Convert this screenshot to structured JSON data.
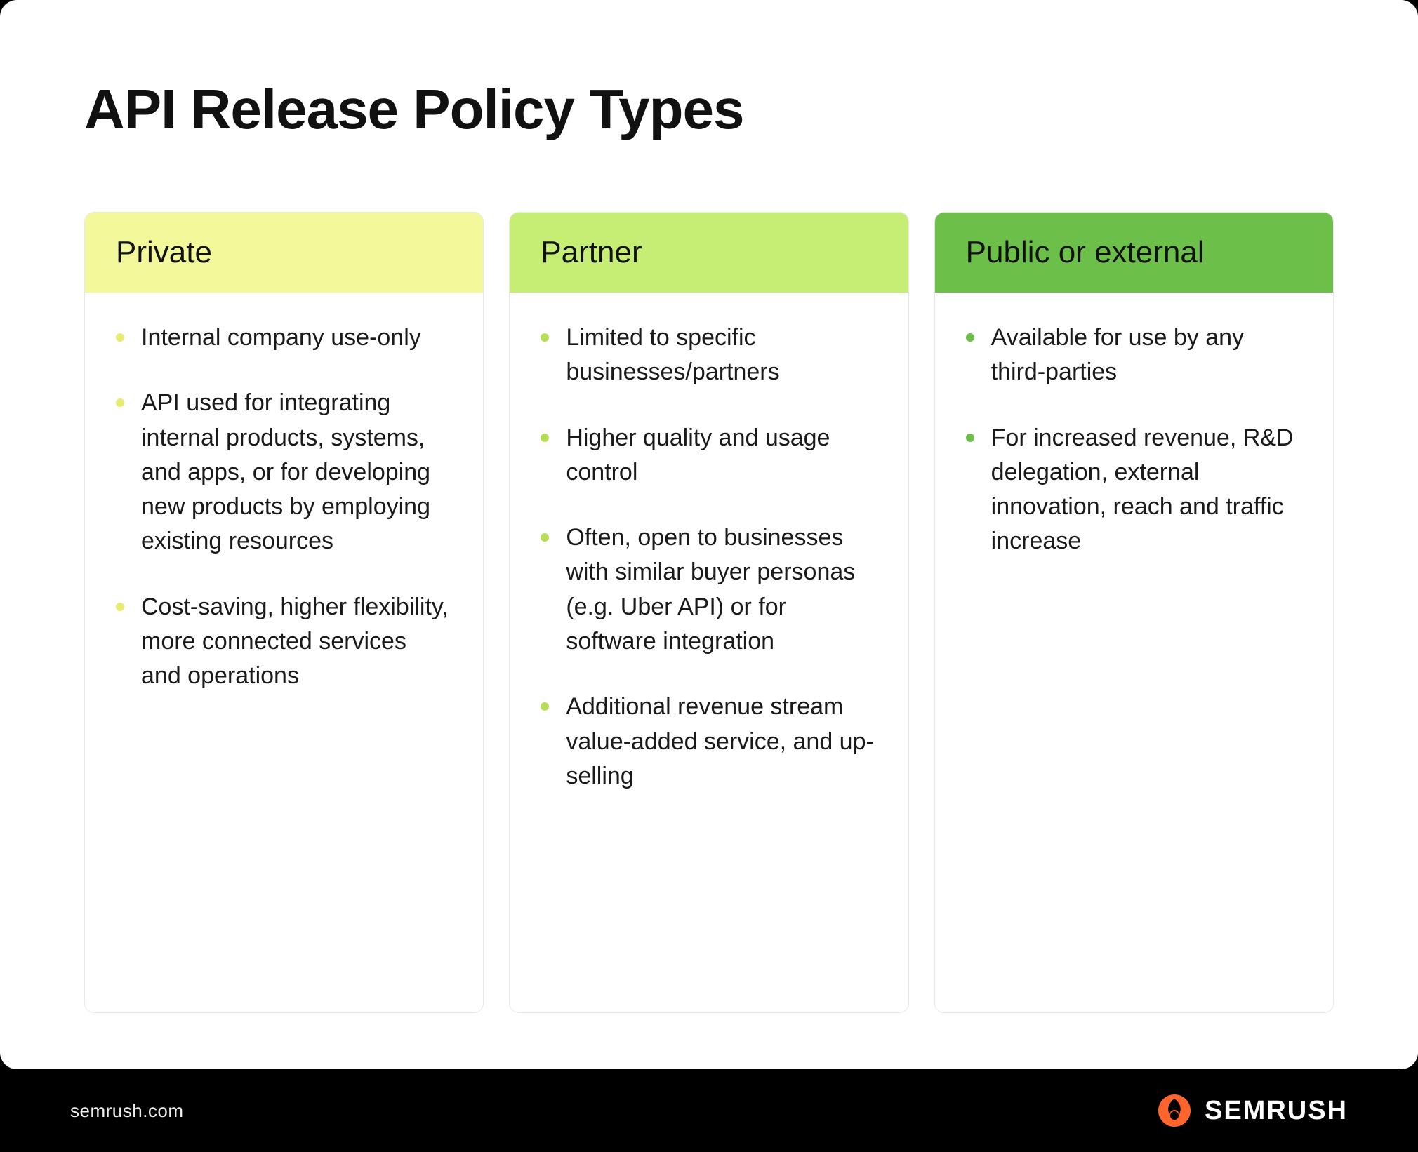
{
  "title": "API Release Policy Types",
  "background_color": "#ffffff",
  "card_border_radius": 24,
  "columns": [
    {
      "heading": "Private",
      "header_bg": "#f3f99a",
      "bullet_color": "#e7eb6f",
      "items": [
        "Internal company use-only",
        "API used for integrating internal products, systems, and apps, or for developing new products by employing existing resources",
        "Cost-saving, higher flexibility, more connected services and operations"
      ]
    },
    {
      "heading": "Partner",
      "header_bg": "#c6ed74",
      "bullet_color": "#b6dd55",
      "items": [
        "Limited to specific businesses/partners",
        "Higher quality and usage control",
        "Often, open to businesses with similar buyer personas (e.g. Uber API) or for software integration",
        "Additional revenue stream value-added service, and up-selling"
      ]
    },
    {
      "heading": "Public or external",
      "header_bg": "#6cc04a",
      "bullet_color": "#6cc04a",
      "items": [
        "Available for use by any third-parties",
        "For increased revenue, R&D delegation, external innovation, reach and traffic increase"
      ]
    }
  ],
  "footer": {
    "domain": "semrush.com",
    "brand_name": "SEMRUSH",
    "brand_accent": "#ff642d",
    "footer_bg": "#000000",
    "footer_text_color": "#ffffff"
  }
}
